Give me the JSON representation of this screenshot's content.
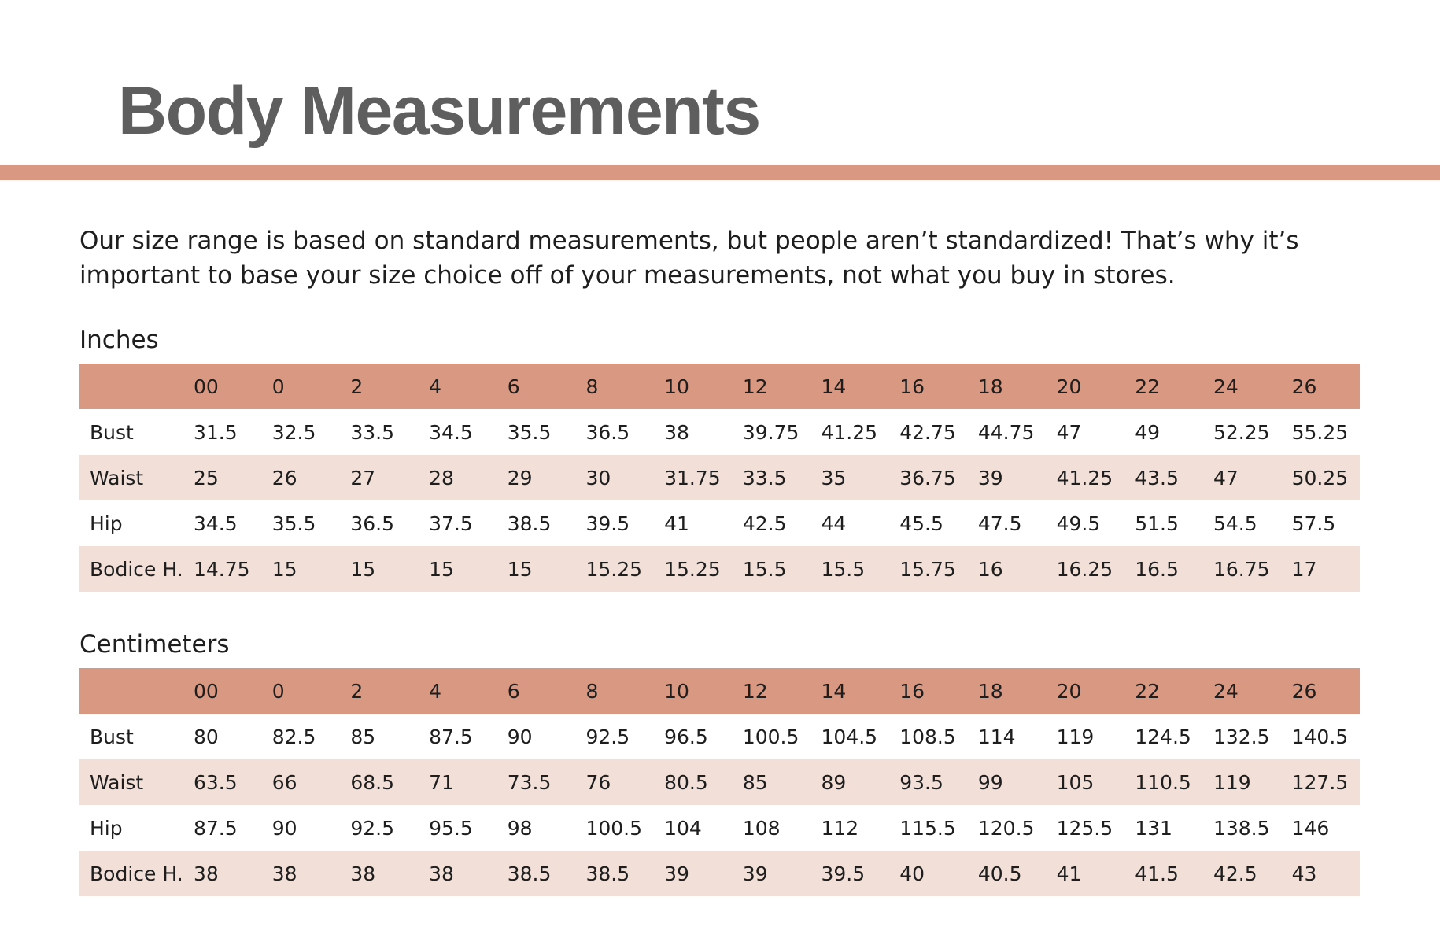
{
  "title": "Body Measurements",
  "intro": {
    "line1": "Our size range is based on standard measurements, but people aren’t standardized! That’s why it’s",
    "line2": "important to base your size choice off of your measurements, not what you buy in stores."
  },
  "colors": {
    "accent": "#d89882",
    "row_shade": "#f2e0d8",
    "title": "#5e5e5e"
  },
  "sizes": [
    "00",
    "0",
    "2",
    "4",
    "6",
    "8",
    "10",
    "12",
    "14",
    "16",
    "18",
    "20",
    "22",
    "24",
    "26"
  ],
  "tables": [
    {
      "heading": "Inches",
      "rows": [
        {
          "label": "Bust",
          "values": [
            "31.5",
            "32.5",
            "33.5",
            "34.5",
            "35.5",
            "36.5",
            "38",
            "39.75",
            "41.25",
            "42.75",
            "44.75",
            "47",
            "49",
            "52.25",
            "55.25"
          ]
        },
        {
          "label": "Waist",
          "values": [
            "25",
            "26",
            "27",
            "28",
            "29",
            "30",
            "31.75",
            "33.5",
            "35",
            "36.75",
            "39",
            "41.25",
            "43.5",
            "47",
            "50.25"
          ]
        },
        {
          "label": "Hip",
          "values": [
            "34.5",
            "35.5",
            "36.5",
            "37.5",
            "38.5",
            "39.5",
            "41",
            "42.5",
            "44",
            "45.5",
            "47.5",
            "49.5",
            "51.5",
            "54.5",
            "57.5"
          ]
        },
        {
          "label": "Bodice H.",
          "values": [
            "14.75",
            "15",
            "15",
            "15",
            "15",
            "15.25",
            "15.25",
            "15.5",
            "15.5",
            "15.75",
            "16",
            "16.25",
            "16.5",
            "16.75",
            "17"
          ]
        }
      ]
    },
    {
      "heading": "Centimeters",
      "rows": [
        {
          "label": "Bust",
          "values": [
            "80",
            "82.5",
            "85",
            "87.5",
            "90",
            "92.5",
            "96.5",
            "100.5",
            "104.5",
            "108.5",
            "114",
            "119",
            "124.5",
            "132.5",
            "140.5"
          ]
        },
        {
          "label": "Waist",
          "values": [
            "63.5",
            "66",
            "68.5",
            "71",
            "73.5",
            "76",
            "80.5",
            "85",
            "89",
            "93.5",
            "99",
            "105",
            "110.5",
            "119",
            "127.5"
          ]
        },
        {
          "label": "Hip",
          "values": [
            "87.5",
            "90",
            "92.5",
            "95.5",
            "98",
            "100.5",
            "104",
            "108",
            "112",
            "115.5",
            "120.5",
            "125.5",
            "131",
            "138.5",
            "146"
          ]
        },
        {
          "label": "Bodice H.",
          "values": [
            "38",
            "38",
            "38",
            "38",
            "38.5",
            "38.5",
            "39",
            "39",
            "39.5",
            "40",
            "40.5",
            "41",
            "41.5",
            "42.5",
            "43"
          ]
        }
      ]
    }
  ]
}
